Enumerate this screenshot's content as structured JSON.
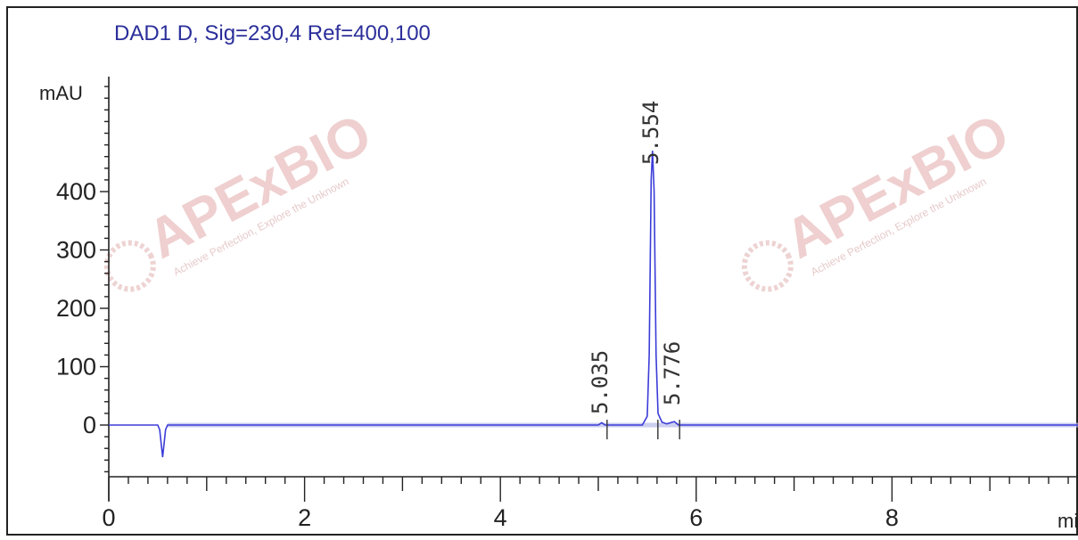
{
  "chart_data": {
    "type": "line",
    "title": "DAD1 D, Sig=230,4 Ref=400,100",
    "ylabel": "mAU",
    "xlabel": "min",
    "xlim": [
      0,
      9.9
    ],
    "ylim": [
      -90,
      600
    ],
    "x_ticks": [
      0,
      2,
      4,
      6,
      8
    ],
    "y_ticks": [
      0,
      100,
      200,
      300,
      400
    ],
    "grid": false,
    "series": [
      {
        "color": "#3b3cd8",
        "points": [
          [
            0,
            0
          ],
          [
            0.5,
            0
          ],
          [
            0.52,
            -8
          ],
          [
            0.55,
            -55
          ],
          [
            0.58,
            -8
          ],
          [
            0.6,
            0
          ],
          [
            1.0,
            0
          ],
          [
            4.2,
            0
          ],
          [
            5.0,
            0
          ],
          [
            5.035,
            4
          ],
          [
            5.07,
            0
          ],
          [
            5.45,
            0
          ],
          [
            5.5,
            15
          ],
          [
            5.52,
            120
          ],
          [
            5.54,
            420
          ],
          [
            5.554,
            470
          ],
          [
            5.57,
            400
          ],
          [
            5.59,
            120
          ],
          [
            5.61,
            20
          ],
          [
            5.65,
            5
          ],
          [
            5.7,
            2
          ],
          [
            5.776,
            6
          ],
          [
            5.82,
            0
          ],
          [
            9.9,
            0
          ]
        ]
      }
    ],
    "peaks": [
      {
        "rt": "5.035",
        "x": 5.035
      },
      {
        "rt": "5.554",
        "x": 5.554
      },
      {
        "rt": "5.776",
        "x": 5.776
      }
    ]
  },
  "watermark": {
    "brand": "APExBIO",
    "tagline": "Achieve Perfection, Explore the Unknown"
  }
}
